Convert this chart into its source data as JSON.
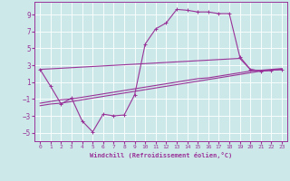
{
  "xlabel": "Windchill (Refroidissement éolien,°C)",
  "xlim": [
    -0.5,
    23.5
  ],
  "ylim": [
    -6,
    10.5
  ],
  "yticks": [
    -5,
    -3,
    -1,
    1,
    3,
    5,
    7,
    9
  ],
  "xticks": [
    0,
    1,
    2,
    3,
    4,
    5,
    6,
    7,
    8,
    9,
    10,
    11,
    12,
    13,
    14,
    15,
    16,
    17,
    18,
    19,
    20,
    21,
    22,
    23
  ],
  "bg_color": "#cce8e8",
  "line_color": "#993399",
  "grid_color": "#ffffff",
  "line_main_x": [
    0,
    1,
    2,
    3,
    4,
    5,
    6,
    7,
    8,
    9,
    10,
    11,
    12,
    13,
    14,
    15,
    16,
    17,
    18,
    19,
    20,
    21,
    22,
    23
  ],
  "line_main_y": [
    2.5,
    0.5,
    -1.6,
    -0.9,
    -3.6,
    -4.9,
    -2.8,
    -3.0,
    -2.9,
    -0.5,
    5.5,
    7.3,
    8.0,
    9.6,
    9.5,
    9.3,
    9.3,
    9.1,
    9.1,
    4.0,
    2.5,
    2.3,
    2.4,
    2.5
  ],
  "line_flat1_x": [
    0,
    1,
    2,
    3,
    4,
    5,
    6,
    7,
    8,
    9,
    10,
    11,
    12,
    13,
    14,
    15,
    16,
    17,
    18,
    19,
    20,
    21,
    22,
    23
  ],
  "line_flat1_y": [
    -1.8,
    -1.6,
    -1.5,
    -1.3,
    -1.1,
    -0.9,
    -0.7,
    -0.5,
    -0.3,
    -0.1,
    0.1,
    0.3,
    0.5,
    0.7,
    0.9,
    1.1,
    1.3,
    1.5,
    1.7,
    1.9,
    2.1,
    2.3,
    2.4,
    2.5
  ],
  "line_flat2_x": [
    0,
    1,
    2,
    3,
    4,
    5,
    6,
    7,
    8,
    9,
    10,
    11,
    12,
    13,
    14,
    15,
    16,
    17,
    18,
    19,
    20,
    21,
    22,
    23
  ],
  "line_flat2_y": [
    -1.5,
    -1.3,
    -1.1,
    -1.0,
    -0.8,
    -0.6,
    -0.4,
    -0.2,
    0.0,
    0.2,
    0.4,
    0.6,
    0.8,
    1.0,
    1.2,
    1.4,
    1.5,
    1.7,
    1.9,
    2.1,
    2.3,
    2.4,
    2.5,
    2.6
  ],
  "line_flat3_x": [
    0,
    19,
    20,
    21,
    22,
    23
  ],
  "line_flat3_y": [
    2.5,
    3.8,
    2.5,
    2.3,
    2.4,
    2.5
  ]
}
